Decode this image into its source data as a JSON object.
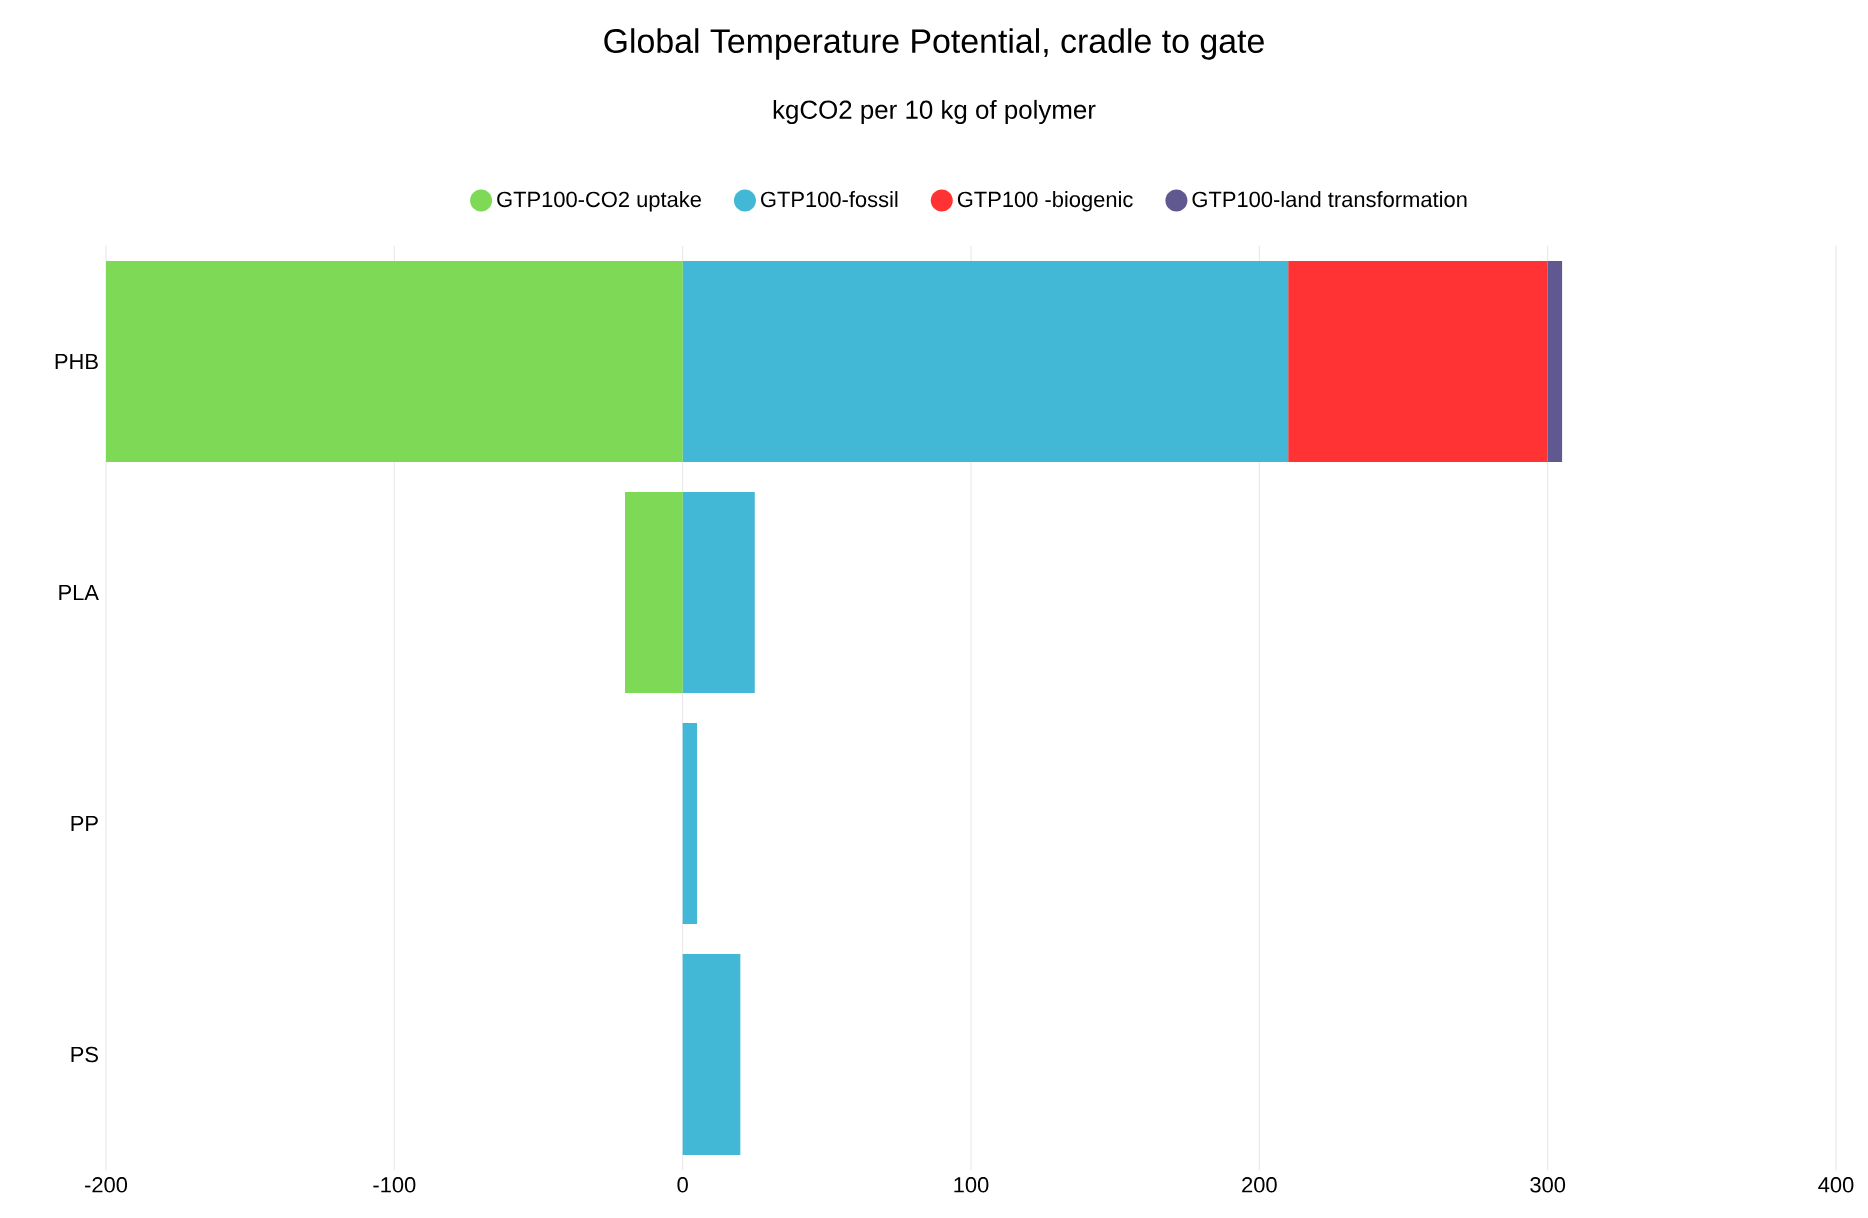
{
  "chart_data": {
    "type": "bar",
    "orientation": "horizontal",
    "stacked": true,
    "title": "Global Temperature Potential, cradle to gate",
    "subtitle": "kgCO2 per 10 kg of polymer",
    "categories": [
      "PHB",
      "PLA",
      "PP",
      "PS"
    ],
    "series": [
      {
        "name": "GTP100-CO2 uptake",
        "color": "#7ed957",
        "values": [
          -200,
          -20,
          0,
          0
        ]
      },
      {
        "name": "GTP100-fossil",
        "color": "#42b7d6",
        "values": [
          210,
          25,
          5,
          20
        ]
      },
      {
        "name": "GTP100 -biogenic",
        "color": "#ff3333",
        "values": [
          90,
          0,
          0,
          0
        ]
      },
      {
        "name": "GTP100-land transformation",
        "color": "#5f5891",
        "values": [
          5,
          0,
          0,
          0
        ]
      }
    ],
    "xlim": [
      -200,
      400
    ],
    "xticks": [
      -200,
      -100,
      0,
      100,
      200,
      300,
      400
    ],
    "grid": "x",
    "legend": "top"
  }
}
